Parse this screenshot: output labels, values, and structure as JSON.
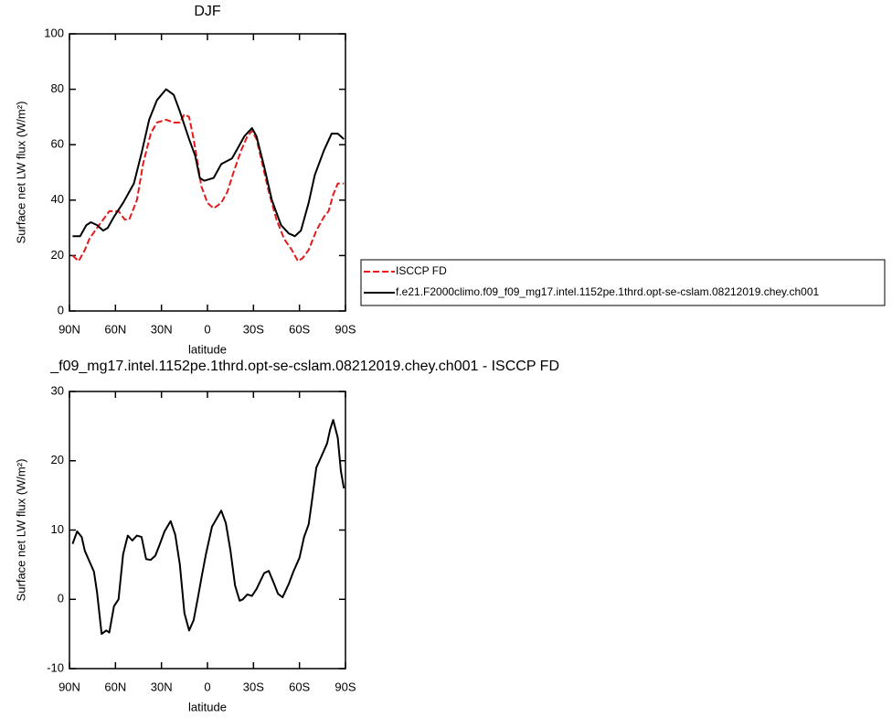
{
  "chart_data": [
    {
      "type": "line",
      "title": "DJF",
      "xlabel": "latitude",
      "ylabel": "Surface net LW flux (W/m²)",
      "xlim": [
        90,
        -90
      ],
      "ylim": [
        0,
        100
      ],
      "xticks": [
        {
          "value": 90,
          "label": "90N"
        },
        {
          "value": 60,
          "label": "60N"
        },
        {
          "value": 30,
          "label": "30N"
        },
        0,
        {
          "value": -30,
          "label": "30S"
        },
        {
          "value": -60,
          "label": "60S"
        },
        {
          "value": -90,
          "label": "90S"
        }
      ],
      "yticks": [
        0,
        20,
        40,
        60,
        80,
        100
      ],
      "legend": "right",
      "series": [
        {
          "name": "ISCCP FD",
          "color": "#e41a1c",
          "linestyle": "dashed",
          "x": [
            88,
            84,
            80,
            77,
            72,
            68,
            64,
            58,
            54,
            51,
            46,
            42,
            37,
            33,
            27,
            22,
            18,
            15,
            12,
            9,
            6,
            4,
            0,
            -4,
            -9,
            -13,
            -17,
            -22,
            -26,
            -29,
            -32,
            -35,
            -40,
            -45,
            -50,
            -55,
            -59,
            -62,
            -66,
            -71,
            -76,
            -79,
            -82,
            -85,
            -89
          ],
          "values": [
            20,
            18,
            22,
            26,
            30,
            33,
            36,
            36,
            33,
            33,
            40,
            53,
            64,
            68,
            69,
            68,
            68,
            71,
            70,
            62,
            52,
            45,
            39,
            37,
            39,
            43,
            50,
            58,
            63,
            65,
            62,
            55,
            43,
            33,
            26,
            22,
            18,
            19,
            22,
            29,
            34,
            36,
            42,
            46,
            46
          ]
        },
        {
          "name": "f.e21.F2000climo.f09_f09_mg17.intel.1152pe.1thrd.opt-se-cslam.08212019.chey.ch001",
          "color": "#000000",
          "linestyle": "solid",
          "x": [
            88,
            83,
            79,
            76,
            72,
            68,
            65,
            61,
            55,
            48,
            43,
            38,
            33,
            27,
            22,
            18,
            12,
            8,
            5,
            2,
            -4,
            -9,
            -16,
            -20,
            -24,
            -29,
            -32,
            -37,
            -42,
            -48,
            -53,
            -57,
            -61,
            -66,
            -70,
            -76,
            -81,
            -85,
            -89
          ],
          "values": [
            27,
            27,
            31,
            32,
            31,
            29,
            30,
            34,
            39,
            46,
            57,
            69,
            76,
            80,
            78,
            72,
            62,
            56,
            48,
            47,
            48,
            53,
            55,
            59,
            63,
            66,
            63,
            52,
            40,
            31,
            28,
            27,
            29,
            39,
            49,
            58,
            64,
            64,
            62
          ]
        }
      ]
    },
    {
      "type": "line",
      "title": "_f09_mg17.intel.1152pe.1thrd.opt-se-cslam.08212019.chey.ch001 - ISCCP FD",
      "xlabel": "latitude",
      "ylabel": "Surface net LW flux (W/m²)",
      "xlim": [
        90,
        -90
      ],
      "ylim": [
        -10,
        30
      ],
      "xticks": [
        {
          "value": 90,
          "label": "90N"
        },
        {
          "value": 60,
          "label": "60N"
        },
        {
          "value": 30,
          "label": "30N"
        },
        0,
        {
          "value": -30,
          "label": "30S"
        },
        {
          "value": -60,
          "label": "60S"
        },
        {
          "value": -90,
          "label": "90S"
        }
      ],
      "yticks": [
        -10,
        0,
        10,
        20,
        30
      ],
      "series": [
        {
          "color": "#000000",
          "linestyle": "solid",
          "x": [
            88,
            85,
            82,
            80,
            77,
            74,
            72,
            69,
            66,
            64,
            61,
            58,
            55,
            52,
            49,
            46,
            43,
            40,
            37,
            34,
            31,
            28,
            24,
            21,
            18,
            15,
            12,
            9,
            6,
            4,
            1,
            -3,
            -9,
            -12,
            -15,
            -18,
            -21,
            -23,
            -26,
            -29,
            -32,
            -37,
            -40,
            -43,
            -46,
            -49,
            -53,
            -56,
            -60,
            -63,
            -66,
            -68,
            -71,
            -74,
            -78,
            -80,
            -82,
            -85,
            -87,
            -89
          ],
          "values": [
            8,
            9.8,
            9,
            7,
            5.5,
            4,
            1,
            -5,
            -4.5,
            -4.8,
            -1,
            0,
            6.5,
            9.2,
            8.5,
            9.2,
            9,
            5.8,
            5.7,
            6.3,
            8,
            9.8,
            11.3,
            9.3,
            5,
            -2,
            -4.5,
            -3,
            0.5,
            3,
            6.5,
            10.5,
            12.8,
            11,
            7,
            2,
            -0.2,
            0,
            0.7,
            0.5,
            1.5,
            3.8,
            4.1,
            2.5,
            0.8,
            0.3,
            2.2,
            4,
            6,
            9,
            10.8,
            14,
            19,
            20.5,
            22.5,
            24.5,
            25.9,
            23.3,
            18.5,
            16
          ]
        }
      ]
    }
  ]
}
